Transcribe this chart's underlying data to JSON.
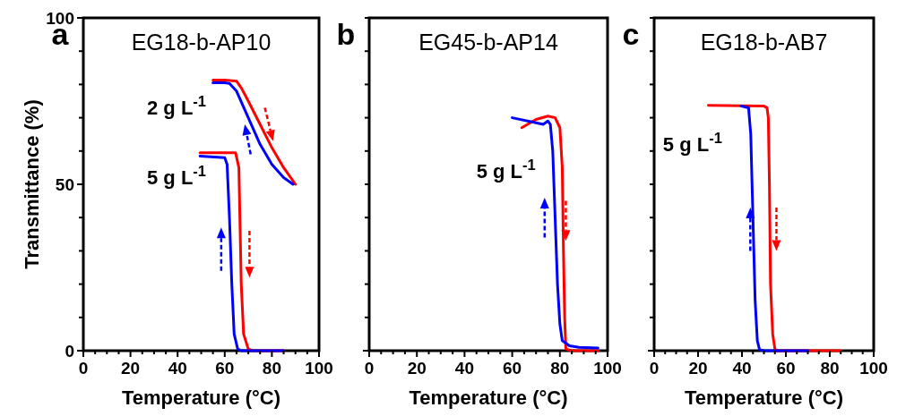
{
  "chart_data": [
    {
      "type": "line",
      "title": "EG18-b-AP10",
      "xlabel": "Temperature (°C)",
      "ylabel": "Transmittance (%)",
      "xlim": [
        0,
        100
      ],
      "ylim": [
        0,
        100
      ],
      "xticks": [
        0,
        {
          "value": 5,
          "label": null
        },
        {
          "value": 10,
          "label": null
        },
        {
          "value": 15,
          "label": null
        },
        20,
        {
          "value": 25,
          "label": null
        },
        {
          "value": 30,
          "label": null
        },
        {
          "value": 35,
          "label": null
        },
        40,
        {
          "value": 45,
          "label": null
        },
        {
          "value": 50,
          "label": null
        },
        {
          "value": 55,
          "label": null
        },
        60,
        {
          "value": 65,
          "label": null
        },
        {
          "value": 70,
          "label": null
        },
        {
          "value": 75,
          "label": null
        },
        80,
        {
          "value": 85,
          "label": null
        },
        {
          "value": 90,
          "label": null
        },
        {
          "value": 95,
          "label": null
        },
        100
      ],
      "yticks": [
        0,
        {
          "value": 10,
          "label": null
        },
        {
          "value": 20,
          "label": null
        },
        {
          "value": 30,
          "label": null
        },
        {
          "value": 40,
          "label": null
        },
        50,
        {
          "value": 60,
          "label": null
        },
        {
          "value": 70,
          "label": null
        },
        {
          "value": 80,
          "label": null
        },
        {
          "value": 90,
          "label": null
        },
        100
      ],
      "line_style": "solid",
      "marker": "none",
      "annotations": [
        "a",
        "2 g L$^{-1}$",
        "5 g L$^{-1}$"
      ],
      "series": [
        {
          "color": "#ff0000",
          "x": [
            55,
            60,
            65,
            67,
            70,
            75,
            80,
            85,
            90
          ],
          "values": [
            81.3,
            81.3,
            81,
            79,
            75,
            68,
            61,
            55,
            50
          ]
        },
        {
          "color": "#0000ff",
          "x": [
            55,
            60,
            62,
            65,
            70,
            75,
            80,
            85,
            89
          ],
          "values": [
            80.5,
            80.5,
            80.3,
            78,
            70,
            62,
            56,
            52,
            50
          ]
        },
        {
          "color": "#ff0000",
          "x": [
            49.5,
            60,
            64.6,
            66,
            67,
            68,
            70,
            72,
            85
          ],
          "values": [
            59.5,
            59.5,
            59.5,
            55,
            20,
            5,
            0.5,
            0,
            0
          ]
        },
        {
          "color": "#0000ff",
          "x": [
            49.5,
            60,
            61,
            62,
            63,
            64,
            65.5,
            67,
            85
          ],
          "values": [
            58.5,
            58,
            56,
            40,
            20,
            5,
            0.5,
            0,
            0
          ]
        }
      ]
    },
    {
      "type": "line",
      "title": "EG45-b-AP14",
      "xlabel": "Temperature (°C)",
      "xlim": [
        0,
        100
      ],
      "ylim": [
        0,
        100
      ],
      "tick_labels": "x",
      "xticks": [
        0,
        {
          "value": 5,
          "label": null
        },
        {
          "value": 10,
          "label": null
        },
        {
          "value": 15,
          "label": null
        },
        20,
        {
          "value": 25,
          "label": null
        },
        {
          "value": 30,
          "label": null
        },
        {
          "value": 35,
          "label": null
        },
        40,
        {
          "value": 45,
          "label": null
        },
        {
          "value": 50,
          "label": null
        },
        {
          "value": 55,
          "label": null
        },
        60,
        {
          "value": 65,
          "label": null
        },
        {
          "value": 70,
          "label": null
        },
        {
          "value": 75,
          "label": null
        },
        80,
        {
          "value": 85,
          "label": null
        },
        {
          "value": 90,
          "label": null
        },
        {
          "value": 95,
          "label": null
        },
        100
      ],
      "yticks": [
        0,
        {
          "value": 10,
          "label": null
        },
        {
          "value": 20,
          "label": null
        },
        {
          "value": 30,
          "label": null
        },
        {
          "value": 40,
          "label": null
        },
        {
          "value": 50,
          "label": null
        },
        {
          "value": 60,
          "label": null
        },
        {
          "value": 70,
          "label": null
        },
        {
          "value": 80,
          "label": null
        },
        {
          "value": 90,
          "label": null
        },
        {
          "value": 100,
          "label": null
        }
      ],
      "line_style": "solid",
      "marker": "none",
      "annotations": [
        "b",
        "5 g L$^{-1}$"
      ],
      "series": [
        {
          "color": "#ff0000",
          "x": [
            64,
            70,
            75,
            78,
            80,
            81,
            81.5,
            82,
            82.5,
            85,
            96
          ],
          "values": [
            67,
            69.5,
            70.5,
            70,
            67,
            55,
            30,
            10,
            0.5,
            0,
            0
          ]
        },
        {
          "color": "#0000ff",
          "x": [
            60,
            70,
            73,
            75,
            76,
            77,
            78,
            79,
            80,
            81,
            84,
            88,
            96
          ],
          "values": [
            70,
            68.5,
            68,
            69,
            68,
            60,
            40,
            20,
            8,
            3,
            1.5,
            1,
            0.8
          ]
        }
      ]
    },
    {
      "type": "line",
      "title": "EG18-b-AB7",
      "xlabel": "Temperature (°C)",
      "xlim": [
        0,
        100
      ],
      "ylim": [
        0,
        100
      ],
      "tick_labels": "x",
      "xticks": [
        0,
        {
          "value": 5,
          "label": null
        },
        {
          "value": 10,
          "label": null
        },
        {
          "value": 15,
          "label": null
        },
        20,
        {
          "value": 25,
          "label": null
        },
        {
          "value": 30,
          "label": null
        },
        {
          "value": 35,
          "label": null
        },
        40,
        {
          "value": 45,
          "label": null
        },
        {
          "value": 50,
          "label": null
        },
        {
          "value": 55,
          "label": null
        },
        60,
        {
          "value": 65,
          "label": null
        },
        {
          "value": 70,
          "label": null
        },
        {
          "value": 75,
          "label": null
        },
        80,
        {
          "value": 85,
          "label": null
        },
        {
          "value": 90,
          "label": null
        },
        {
          "value": 95,
          "label": null
        },
        100
      ],
      "yticks": [
        0,
        {
          "value": 10,
          "label": null
        },
        {
          "value": 20,
          "label": null
        },
        {
          "value": 30,
          "label": null
        },
        {
          "value": 40,
          "label": null
        },
        {
          "value": 50,
          "label": null
        },
        {
          "value": 60,
          "label": null
        },
        {
          "value": 70,
          "label": null
        },
        {
          "value": 80,
          "label": null
        },
        {
          "value": 90,
          "label": null
        },
        {
          "value": 100,
          "label": null
        }
      ],
      "line_style": "solid",
      "marker": "none",
      "annotations": [
        "c",
        "5 g L$^{-1}$"
      ],
      "series": [
        {
          "color": "#ff0000",
          "x": [
            24.7,
            40,
            50,
            51.4,
            52,
            52.5,
            53,
            54,
            55,
            56,
            85
          ],
          "values": [
            73.7,
            73.6,
            73.5,
            73,
            70,
            50,
            20,
            5,
            0.5,
            0,
            0
          ]
        },
        {
          "color": "#0000ff",
          "x": [
            39.7,
            43,
            44,
            45,
            46,
            47,
            48,
            50,
            70
          ],
          "values": [
            73.5,
            73,
            65,
            40,
            15,
            3,
            0.3,
            0,
            0
          ]
        }
      ]
    }
  ]
}
